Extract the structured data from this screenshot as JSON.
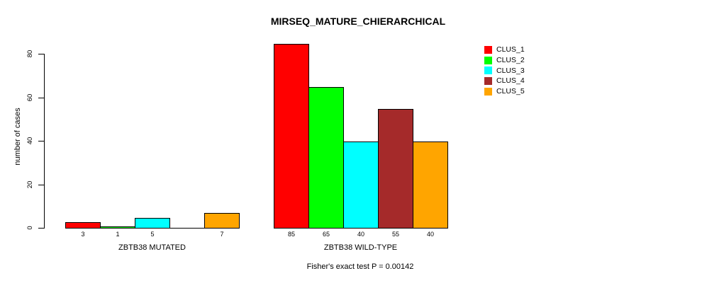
{
  "chart_data": {
    "type": "bar",
    "title": "MIRSEQ_MATURE_CHIERARCHICAL",
    "ylabel": "number of cases",
    "xlabel": "",
    "ylim": [
      0,
      85
    ],
    "yticks": [
      0,
      20,
      40,
      60,
      80
    ],
    "grid": false,
    "legend_position": "top-right",
    "series": [
      "CLUS_1",
      "CLUS_2",
      "CLUS_3",
      "CLUS_4",
      "CLUS_5"
    ],
    "legend": [
      {
        "label": "CLUS_1",
        "color": "#FF0000"
      },
      {
        "label": "CLUS_2",
        "color": "#00FF00"
      },
      {
        "label": "CLUS_3",
        "color": "#00FFFF"
      },
      {
        "label": "CLUS_4",
        "color": "#A52A2A"
      },
      {
        "label": "CLUS_5",
        "color": "#FFA500"
      }
    ],
    "groups": [
      {
        "label": "ZBTB38 MUTATED",
        "values": [
          3,
          1,
          5,
          0,
          7
        ],
        "bar_labels": [
          "3",
          "1",
          "5",
          "",
          "7"
        ]
      },
      {
        "label": "ZBTB38 WILD-TYPE",
        "values": [
          85,
          65,
          40,
          55,
          40
        ],
        "bar_labels": [
          "85",
          "65",
          "40",
          "55",
          "40"
        ]
      }
    ],
    "annotation": "Fisher's exact test P = 0.00142",
    "axis_color": "#000000",
    "bar_border_color": "#000000",
    "background_color": "#FFFFFF"
  }
}
